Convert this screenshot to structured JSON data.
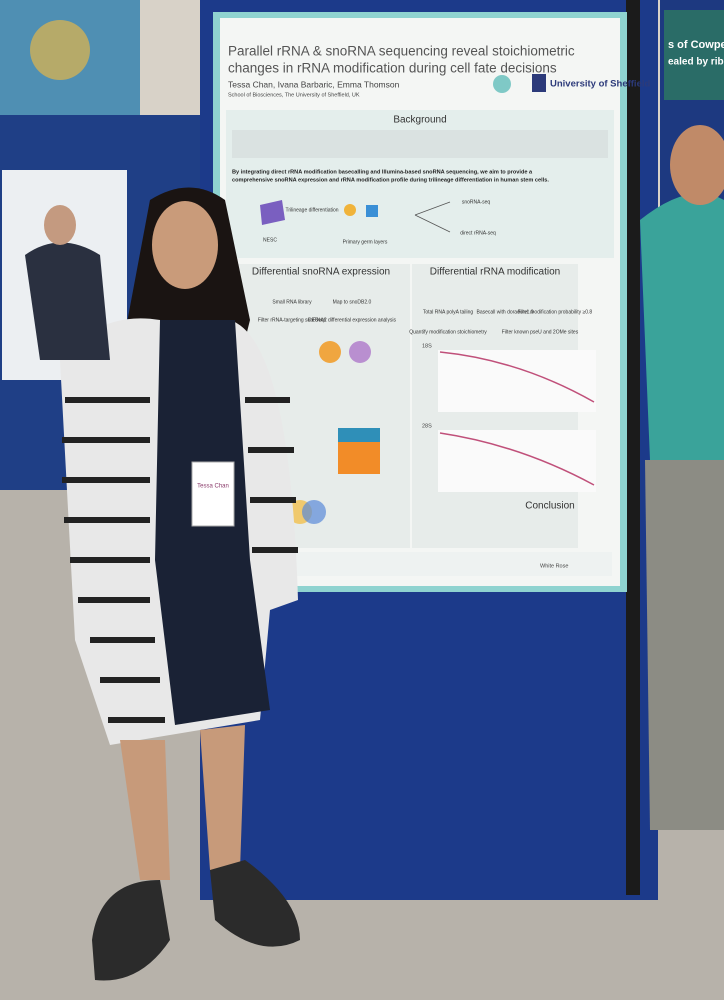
{
  "poster": {
    "title_lines": [
      "Parallel rRNA & snoRNA sequencing reveal stoichiometric",
      "changes in rRNA modification during cell fate decisions"
    ],
    "authors": "Tessa Chan, Ivana Barbaric, Emma Thomson",
    "affiliation": "School of Biosciences, The University of Sheffield, UK",
    "university": "University of Sheffield",
    "background": {
      "heading": "Background",
      "aim_lines": [
        "By integrating direct rRNA modification basecalling and Illumina-based snoRNA sequencing, we aim to provide a",
        "comprehensive snoRNA expression and rRNA modification profile during trilineage differentiation in human stem cells."
      ],
      "diagram": [
        "NESC",
        "Trilineage differentiation",
        "Primary germ layers",
        "snoRNA-seq",
        "direct rRNA-seq"
      ]
    },
    "left_panel": {
      "heading": "Differential snoRNA expression",
      "flow": [
        "Small RNA library",
        "Map to snoDB2.0",
        "Filter rRNA-targeting snoRNAs",
        "DESeq2 differential expression analysis"
      ]
    },
    "right_panel": {
      "heading": "Differential rRNA modification",
      "flow": [
        "Total RNA polyA tailing",
        "Basecall with dorado v1.0",
        "Filter modification probability ≥0.8",
        "Quantify modification stoichiometry",
        "Filter known pseU and 2OMe sites"
      ],
      "plots": [
        "18S",
        "28S"
      ],
      "conclusion": "Conclusion"
    },
    "funders": [
      "White Rose"
    ]
  },
  "badge": "Tessa Chan",
  "neighbor_poster": [
    "s of Cowpe",
    "ealed by rib"
  ]
}
